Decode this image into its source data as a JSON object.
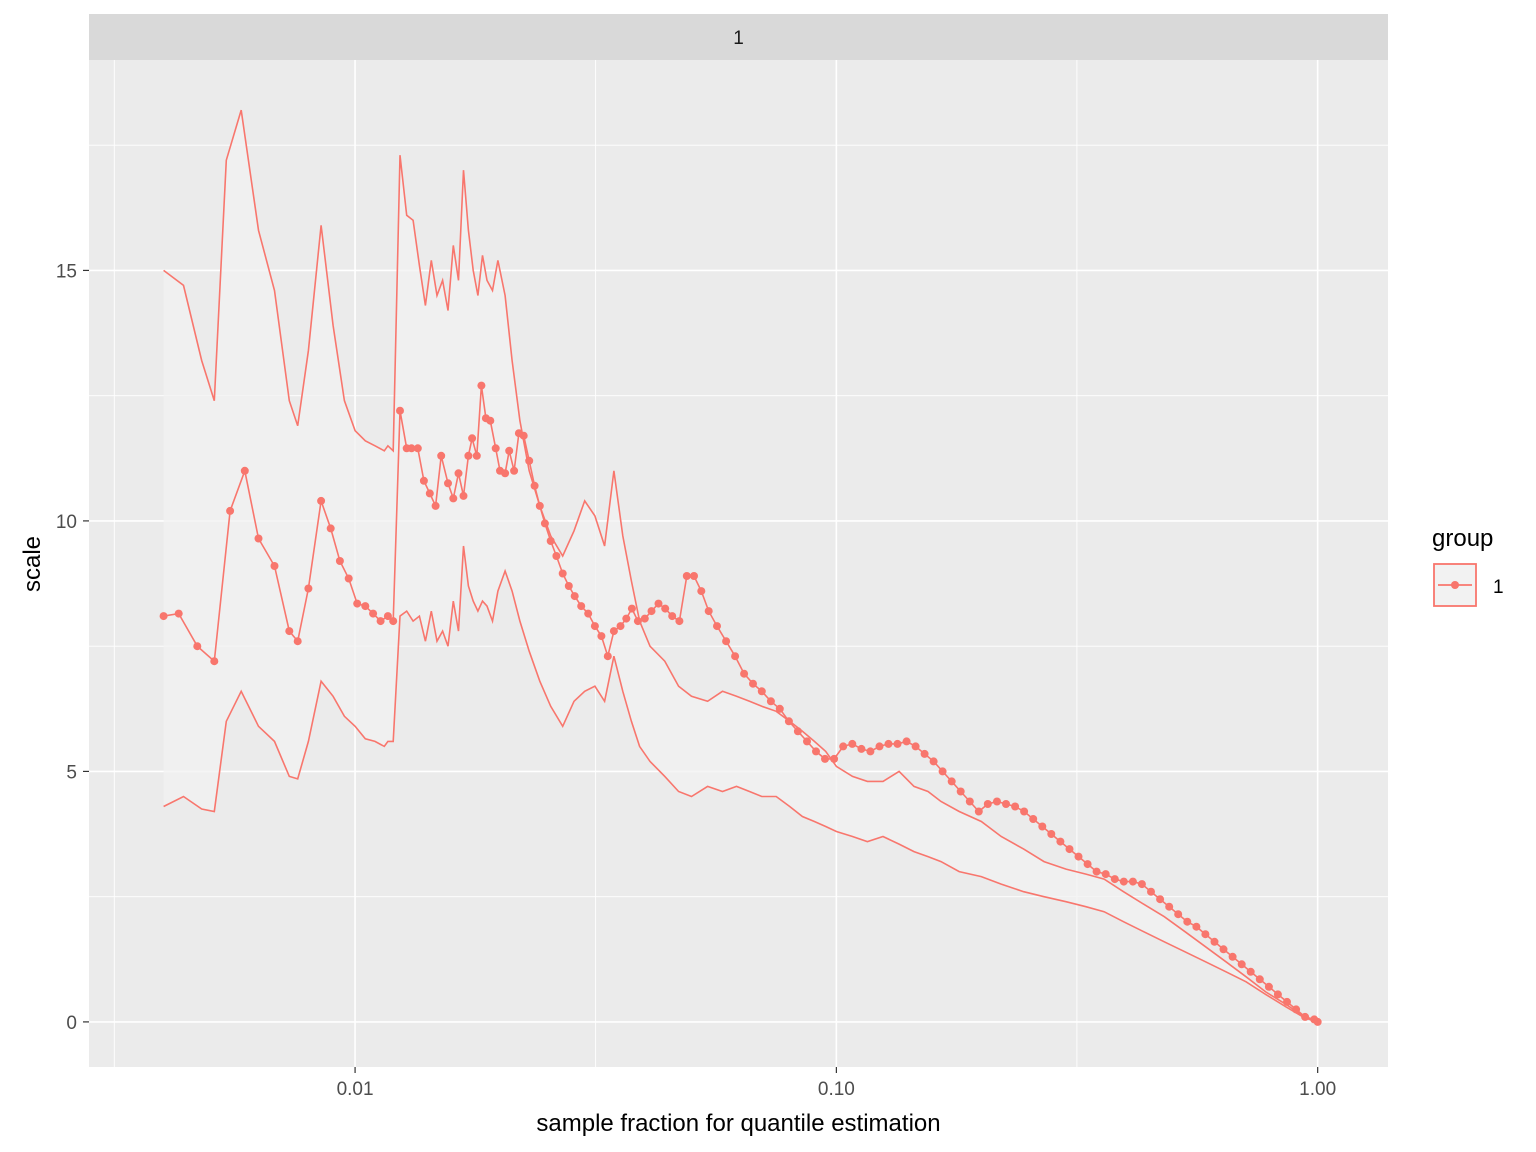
{
  "chart_data": {
    "type": "line",
    "facet_label": "1",
    "xlabel": "sample fraction for quantile estimation",
    "ylabel": "scale",
    "x_scale": "log10",
    "xlim": [
      0.0028,
      1.4
    ],
    "ylim": [
      -0.9,
      19.2
    ],
    "x_ticks": [
      0.01,
      0.1,
      1.0
    ],
    "x_tick_labels": [
      "0.01",
      "0.10",
      "1.00"
    ],
    "x_minor_ticks": [
      0.00316,
      0.0316,
      0.316
    ],
    "y_ticks": [
      0,
      5,
      10,
      15
    ],
    "y_tick_labels": [
      "0",
      "5",
      "10",
      "15"
    ],
    "y_minor_ticks": [
      2.5,
      7.5,
      12.5,
      17.5
    ],
    "grid": true,
    "legend": {
      "title": "group",
      "position": "right",
      "entries": [
        "1"
      ]
    },
    "colors": {
      "series": "#F8766D",
      "panel": "#EBEBEB",
      "strip": "#D9D9D9",
      "ribbon": "#f2f2f2"
    },
    "series": [
      {
        "name": "1",
        "estimate_x": [
          0.004,
          0.0043,
          0.0047,
          0.0051,
          0.0055,
          0.0059,
          0.0063,
          0.0068,
          0.0073,
          0.0076,
          0.008,
          0.0085,
          0.0089,
          0.0093,
          0.0097,
          0.0101,
          0.0105,
          0.0109,
          0.0113,
          0.0117,
          0.012,
          0.0124,
          0.0128,
          0.0131,
          0.0135,
          0.0139,
          0.0143,
          0.0147,
          0.0151,
          0.0156,
          0.016,
          0.0164,
          0.0168,
          0.0172,
          0.0175,
          0.0179,
          0.0183,
          0.0187,
          0.0191,
          0.0196,
          0.02,
          0.0205,
          0.0209,
          0.0214,
          0.0219,
          0.0224,
          0.023,
          0.0236,
          0.0242,
          0.0248,
          0.0255,
          0.0262,
          0.027,
          0.0278,
          0.0286,
          0.0295,
          0.0305,
          0.0315,
          0.0325,
          0.0335,
          0.0345,
          0.0356,
          0.0366,
          0.0376,
          0.0387,
          0.04,
          0.0413,
          0.0427,
          0.0441,
          0.0456,
          0.0472,
          0.0489,
          0.0506,
          0.0524,
          0.0543,
          0.0565,
          0.059,
          0.0616,
          0.0643,
          0.0671,
          0.07,
          0.0731,
          0.0763,
          0.0797,
          0.0832,
          0.0869,
          0.0907,
          0.0947,
          0.0989,
          0.1033,
          0.1079,
          0.1127,
          0.1177,
          0.1229,
          0.1283,
          0.134,
          0.1399,
          0.1461,
          0.1525,
          0.1592,
          0.1662,
          0.1736,
          0.1813,
          0.1893,
          0.1977,
          0.2064,
          0.2156,
          0.2251,
          0.2351,
          0.2455,
          0.2564,
          0.2678,
          0.2796,
          0.292,
          0.305,
          0.3185,
          0.3326,
          0.3473,
          0.3627,
          0.3788,
          0.3956,
          0.4131,
          0.4314,
          0.4505,
          0.4705,
          0.4914,
          0.5131,
          0.5359,
          0.5597,
          0.5845,
          0.6104,
          0.6374,
          0.6657,
          0.6952,
          0.726,
          0.7582,
          0.7918,
          0.8269,
          0.8635,
          0.9018,
          0.9418,
          0.9835,
          1.0
        ],
        "estimate_y": [
          8.1,
          8.15,
          7.5,
          7.2,
          10.2,
          11.0,
          9.65,
          9.1,
          7.8,
          7.6,
          8.65,
          10.4,
          9.85,
          9.2,
          8.85,
          8.35,
          8.3,
          8.15,
          8.0,
          8.1,
          8.0,
          12.2,
          11.45,
          11.45,
          11.45,
          10.8,
          10.55,
          10.3,
          11.3,
          10.75,
          10.45,
          10.95,
          10.5,
          11.3,
          11.65,
          11.3,
          12.7,
          12.05,
          12.0,
          11.45,
          11.0,
          10.95,
          11.4,
          11.0,
          11.75,
          11.7,
          11.2,
          10.7,
          10.3,
          9.95,
          9.6,
          9.3,
          8.95,
          8.7,
          8.5,
          8.3,
          8.15,
          7.9,
          7.7,
          7.3,
          7.8,
          7.9,
          8.05,
          8.25,
          8.0,
          8.05,
          8.2,
          8.35,
          8.25,
          8.1,
          8.0,
          8.9,
          8.9,
          8.6,
          8.2,
          7.9,
          7.6,
          7.3,
          6.95,
          6.75,
          6.6,
          6.4,
          6.25,
          6.0,
          5.8,
          5.6,
          5.4,
          5.25,
          5.25,
          5.5,
          5.55,
          5.45,
          5.4,
          5.5,
          5.55,
          5.55,
          5.6,
          5.5,
          5.35,
          5.2,
          5.0,
          4.8,
          4.6,
          4.4,
          4.2,
          4.35,
          4.4,
          4.35,
          4.3,
          4.2,
          4.05,
          3.9,
          3.75,
          3.6,
          3.45,
          3.3,
          3.15,
          3.0,
          2.95,
          2.85,
          2.8,
          2.8,
          2.75,
          2.6,
          2.45,
          2.3,
          2.15,
          2.0,
          1.9,
          1.75,
          1.6,
          1.45,
          1.3,
          1.15,
          1.0,
          0.85,
          0.7,
          0.55,
          0.4,
          0.25,
          0.1,
          0.05,
          0.0
        ],
        "upper_x": [
          0.004,
          0.0044,
          0.0048,
          0.0051,
          0.0054,
          0.0058,
          0.0063,
          0.0068,
          0.0073,
          0.0076,
          0.008,
          0.0085,
          0.009,
          0.0095,
          0.01,
          0.0105,
          0.011,
          0.0115,
          0.0117,
          0.012,
          0.0124,
          0.0128,
          0.0132,
          0.0136,
          0.014,
          0.0144,
          0.0148,
          0.0152,
          0.0156,
          0.016,
          0.0164,
          0.0168,
          0.0172,
          0.0176,
          0.018,
          0.0184,
          0.0188,
          0.0193,
          0.0198,
          0.0205,
          0.0212,
          0.022,
          0.023,
          0.0242,
          0.0255,
          0.027,
          0.0285,
          0.03,
          0.0315,
          0.033,
          0.0345,
          0.036,
          0.0375,
          0.039,
          0.041,
          0.044,
          0.047,
          0.05,
          0.054,
          0.058,
          0.062,
          0.066,
          0.07,
          0.075,
          0.08,
          0.085,
          0.09,
          0.095,
          0.1,
          0.108,
          0.116,
          0.125,
          0.135,
          0.145,
          0.155,
          0.165,
          0.18,
          0.2,
          0.22,
          0.245,
          0.27,
          0.3,
          0.33,
          0.36,
          0.395,
          0.435,
          0.48,
          0.53,
          0.585,
          0.645,
          0.71,
          0.78,
          0.86,
          0.94,
          1.0
        ],
        "upper_y": [
          15.0,
          14.7,
          13.2,
          12.4,
          17.2,
          18.2,
          15.8,
          14.6,
          12.4,
          11.9,
          13.4,
          15.9,
          13.9,
          12.4,
          11.8,
          11.6,
          11.5,
          11.4,
          11.5,
          11.4,
          17.3,
          16.1,
          16.0,
          15.1,
          14.3,
          15.2,
          14.5,
          14.8,
          14.2,
          15.5,
          14.8,
          17.0,
          15.8,
          15.0,
          14.5,
          15.3,
          14.8,
          14.6,
          15.2,
          14.5,
          13.2,
          12.0,
          11.0,
          10.3,
          9.7,
          9.3,
          9.8,
          10.4,
          10.1,
          9.5,
          11.0,
          9.7,
          8.8,
          8.0,
          7.5,
          7.2,
          6.7,
          6.5,
          6.4,
          6.6,
          6.5,
          6.4,
          6.3,
          6.2,
          6.0,
          5.8,
          5.6,
          5.4,
          5.1,
          4.9,
          4.8,
          4.8,
          5.0,
          4.7,
          4.6,
          4.4,
          4.2,
          4.0,
          3.7,
          3.45,
          3.2,
          3.05,
          2.95,
          2.85,
          2.6,
          2.35,
          2.1,
          1.8,
          1.5,
          1.2,
          0.9,
          0.6,
          0.35,
          0.1,
          0.0
        ],
        "lower_x": [
          0.004,
          0.0044,
          0.0048,
          0.0051,
          0.0054,
          0.0058,
          0.0063,
          0.0068,
          0.0073,
          0.0076,
          0.008,
          0.0085,
          0.009,
          0.0095,
          0.01,
          0.0105,
          0.011,
          0.0115,
          0.0117,
          0.012,
          0.0124,
          0.0128,
          0.0132,
          0.0136,
          0.014,
          0.0144,
          0.0148,
          0.0152,
          0.0156,
          0.016,
          0.0164,
          0.0168,
          0.0172,
          0.0176,
          0.018,
          0.0184,
          0.0188,
          0.0193,
          0.0198,
          0.0205,
          0.0212,
          0.022,
          0.023,
          0.0242,
          0.0255,
          0.027,
          0.0285,
          0.03,
          0.0315,
          0.033,
          0.0345,
          0.036,
          0.0375,
          0.039,
          0.041,
          0.044,
          0.047,
          0.05,
          0.054,
          0.058,
          0.062,
          0.066,
          0.07,
          0.075,
          0.08,
          0.085,
          0.09,
          0.095,
          0.1,
          0.108,
          0.116,
          0.125,
          0.135,
          0.145,
          0.155,
          0.165,
          0.18,
          0.2,
          0.22,
          0.245,
          0.27,
          0.3,
          0.33,
          0.36,
          0.395,
          0.435,
          0.48,
          0.53,
          0.585,
          0.645,
          0.71,
          0.78,
          0.86,
          0.94,
          1.0
        ],
        "lower_y": [
          4.3,
          4.5,
          4.25,
          4.2,
          6.0,
          6.6,
          5.9,
          5.6,
          4.9,
          4.85,
          5.6,
          6.8,
          6.5,
          6.1,
          5.9,
          5.65,
          5.6,
          5.5,
          5.6,
          5.6,
          8.1,
          8.2,
          8.0,
          8.1,
          7.6,
          8.2,
          7.6,
          7.8,
          7.5,
          8.4,
          7.8,
          9.5,
          8.7,
          8.4,
          8.2,
          8.4,
          8.3,
          8.0,
          8.6,
          9.0,
          8.6,
          8.0,
          7.4,
          6.8,
          6.3,
          5.9,
          6.4,
          6.6,
          6.7,
          6.4,
          7.3,
          6.6,
          6.0,
          5.5,
          5.2,
          4.9,
          4.6,
          4.5,
          4.7,
          4.6,
          4.7,
          4.6,
          4.5,
          4.5,
          4.3,
          4.1,
          4.0,
          3.9,
          3.8,
          3.7,
          3.6,
          3.7,
          3.55,
          3.4,
          3.3,
          3.2,
          3.0,
          2.9,
          2.75,
          2.6,
          2.5,
          2.4,
          2.3,
          2.2,
          2.0,
          1.8,
          1.6,
          1.4,
          1.2,
          1.0,
          0.8,
          0.55,
          0.3,
          0.08,
          0.0
        ]
      }
    ]
  }
}
